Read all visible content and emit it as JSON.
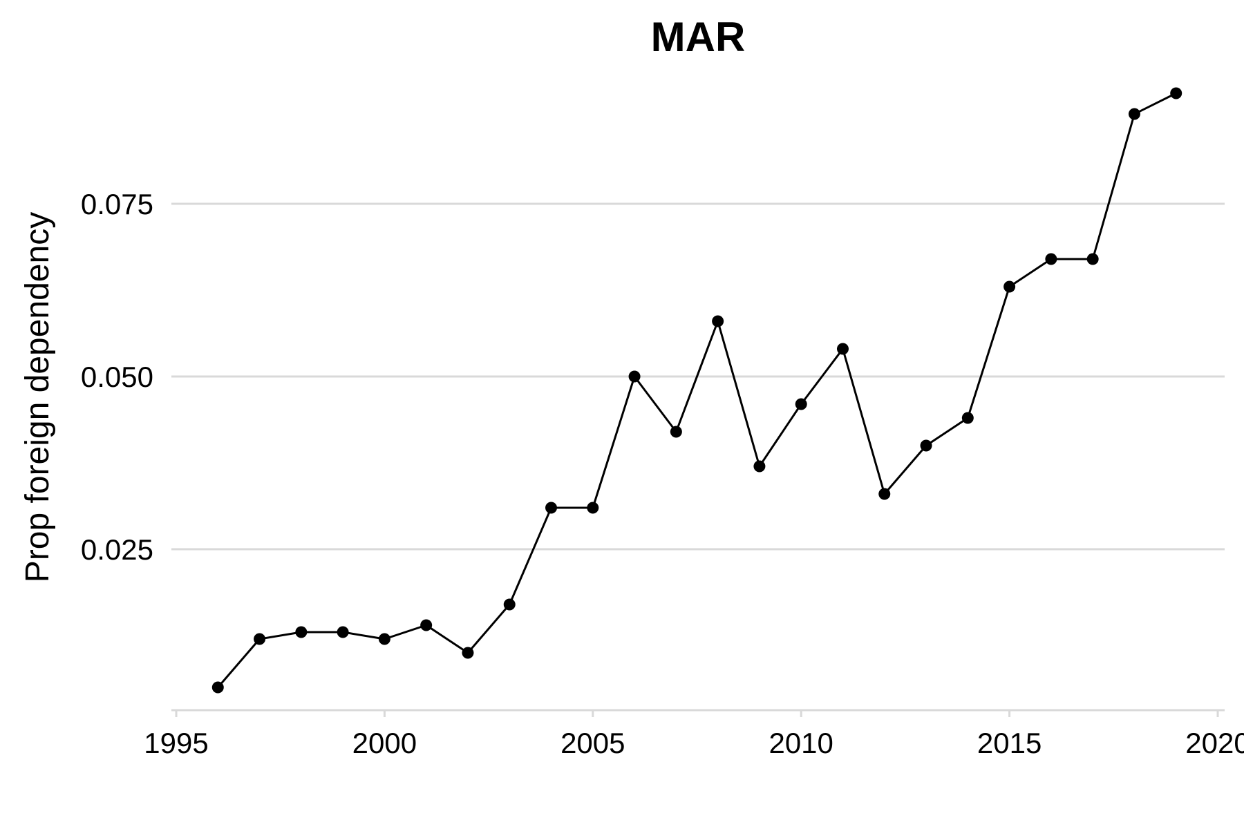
{
  "chart_data": {
    "type": "line",
    "title": "MAR",
    "xlabel": "",
    "ylabel": "Prop foreign dependency",
    "xlim": [
      1995,
      2020
    ],
    "ylim": [
      0.0045,
      0.0915
    ],
    "x_ticks": [
      "1995",
      "2000",
      "2005",
      "2010",
      "2015",
      "2020"
    ],
    "y_ticks": [
      "0.025",
      "0.050",
      "0.075"
    ],
    "grid": "horizontal major",
    "legend": "none",
    "colors": {
      "line": "#000000",
      "grid": "#d9d9d9",
      "axis": "#d9d9d9"
    },
    "series": [
      {
        "x": [
          1996,
          1997,
          1998,
          1999,
          2000,
          2001,
          2002,
          2003,
          2004,
          2005,
          2006,
          2007,
          2008,
          2009,
          2010,
          2011,
          2012,
          2013,
          2014,
          2015,
          2016,
          2017,
          2018,
          2019
        ],
        "values": [
          0.005,
          0.012,
          0.013,
          0.013,
          0.012,
          0.014,
          0.01,
          0.017,
          0.031,
          0.031,
          0.05,
          0.042,
          0.058,
          0.037,
          0.046,
          0.054,
          0.033,
          0.04,
          0.044,
          0.063,
          0.067,
          0.067,
          0.088,
          0.091
        ]
      }
    ]
  }
}
